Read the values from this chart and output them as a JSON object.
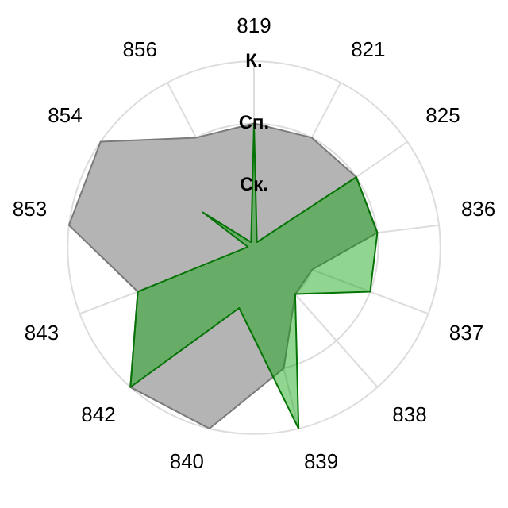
{
  "chart_data": {
    "type": "radar",
    "categories": [
      "819",
      "821",
      "825",
      "836",
      "837",
      "838",
      "839",
      "840",
      "842",
      "843",
      "853",
      "854",
      "856"
    ],
    "series": [
      {
        "color": "#b4b4b4",
        "values": [
          2,
          2,
          2,
          2,
          1,
          1,
          2,
          3,
          3,
          2,
          3,
          3,
          2
        ]
      },
      {
        "color": "#08a408",
        "values": [
          2,
          0.1,
          2,
          2,
          2,
          1,
          3,
          1,
          3,
          2,
          0.1,
          1,
          0.1
        ]
      }
    ],
    "ylim": [
      0,
      3
    ],
    "yticks": [
      {
        "value": 1,
        "label": "Ск."
      },
      {
        "value": 2,
        "label": "Сп."
      },
      {
        "value": 3,
        "label": "К."
      }
    ],
    "grid": true,
    "legend": false
  }
}
